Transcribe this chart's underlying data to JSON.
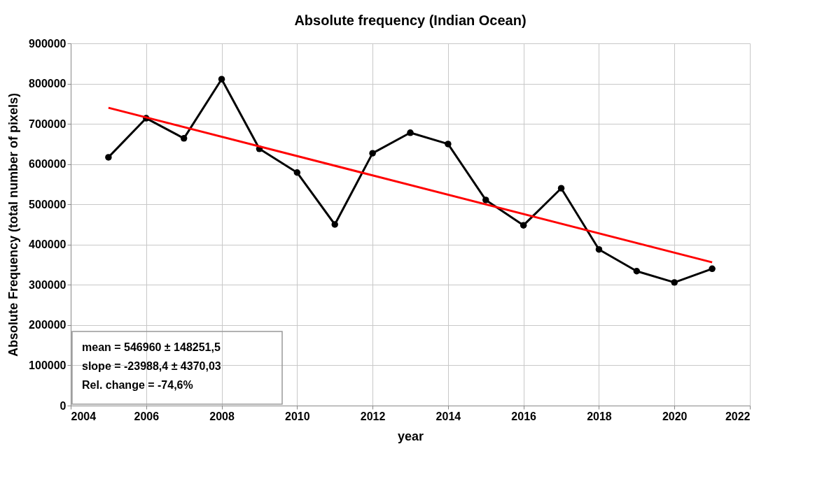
{
  "chart_data": {
    "type": "line",
    "title": "Absolute frequency (Indian Ocean)",
    "xlabel": "year",
    "ylabel": "Absolute Frequency (total number of pixels)",
    "x": [
      2005,
      2006,
      2007,
      2008,
      2009,
      2010,
      2011,
      2012,
      2013,
      2014,
      2015,
      2016,
      2017,
      2018,
      2019,
      2020,
      2021
    ],
    "series": [
      {
        "color": "#000000",
        "marker": "circle",
        "values": [
          617000,
          714000,
          664000,
          811000,
          638000,
          579000,
          450000,
          627000,
          678000,
          650000,
          511000,
          448000,
          540000,
          388000,
          334000,
          306000,
          340000
        ]
      },
      {
        "type": "line",
        "color": "#ff0000",
        "marker": "none",
        "x": [
          2005,
          2021
        ],
        "values": [
          740000,
          356000
        ]
      }
    ],
    "xlim": [
      2004,
      2022
    ],
    "xticks": [
      2004,
      2006,
      2008,
      2010,
      2012,
      2014,
      2016,
      2018,
      2020,
      2022
    ],
    "ylim": [
      0,
      900000
    ],
    "yticks": [
      0,
      100000,
      200000,
      300000,
      400000,
      500000,
      600000,
      700000,
      800000,
      900000
    ],
    "grid": true,
    "annotations": [
      "mean = 546960 ± 148251,5",
      "slope = -23988,4 ± 4370,03",
      "Rel. change = -74,6%"
    ]
  }
}
